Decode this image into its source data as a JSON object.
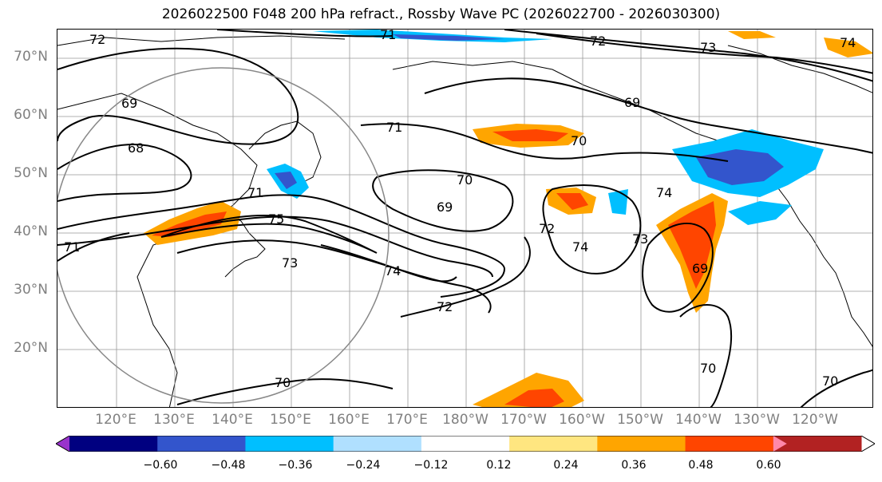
{
  "title": "2026022500 F048 200 hPa refract., Rossby Wave PC (2026022700 - 2026030300)",
  "lat_labels": [
    "70°N",
    "60°N",
    "50°N",
    "40°N",
    "30°N",
    "20°N"
  ],
  "lon_labels": [
    "120°E",
    "130°E",
    "140°E",
    "150°E",
    "160°E",
    "170°E",
    "180°W",
    "170°W",
    "160°W",
    "150°W",
    "140°W",
    "130°W",
    "120°W"
  ],
  "contour_labels": [
    "72",
    "71",
    "72",
    "73",
    "74",
    "69",
    "68",
    "71",
    "70",
    "69",
    "70",
    "71",
    "75",
    "73",
    "74",
    "72",
    "72",
    "74",
    "73",
    "69",
    "74",
    "71",
    "70",
    "70",
    "69",
    "70"
  ],
  "colorbar": {
    "colors": [
      "#9933cc",
      "#000080",
      "#3355cc",
      "#00bfff",
      "#b0e0ff",
      "#ffffff",
      "#ffe680",
      "#ffa500",
      "#ff4500",
      "#b22222",
      "#ff88aa"
    ],
    "ticks": [
      "−0.60",
      "−0.48",
      "−0.36",
      "−0.24",
      "−0.12",
      "0.12",
      "0.24",
      "0.36",
      "0.48",
      "0.60"
    ]
  }
}
